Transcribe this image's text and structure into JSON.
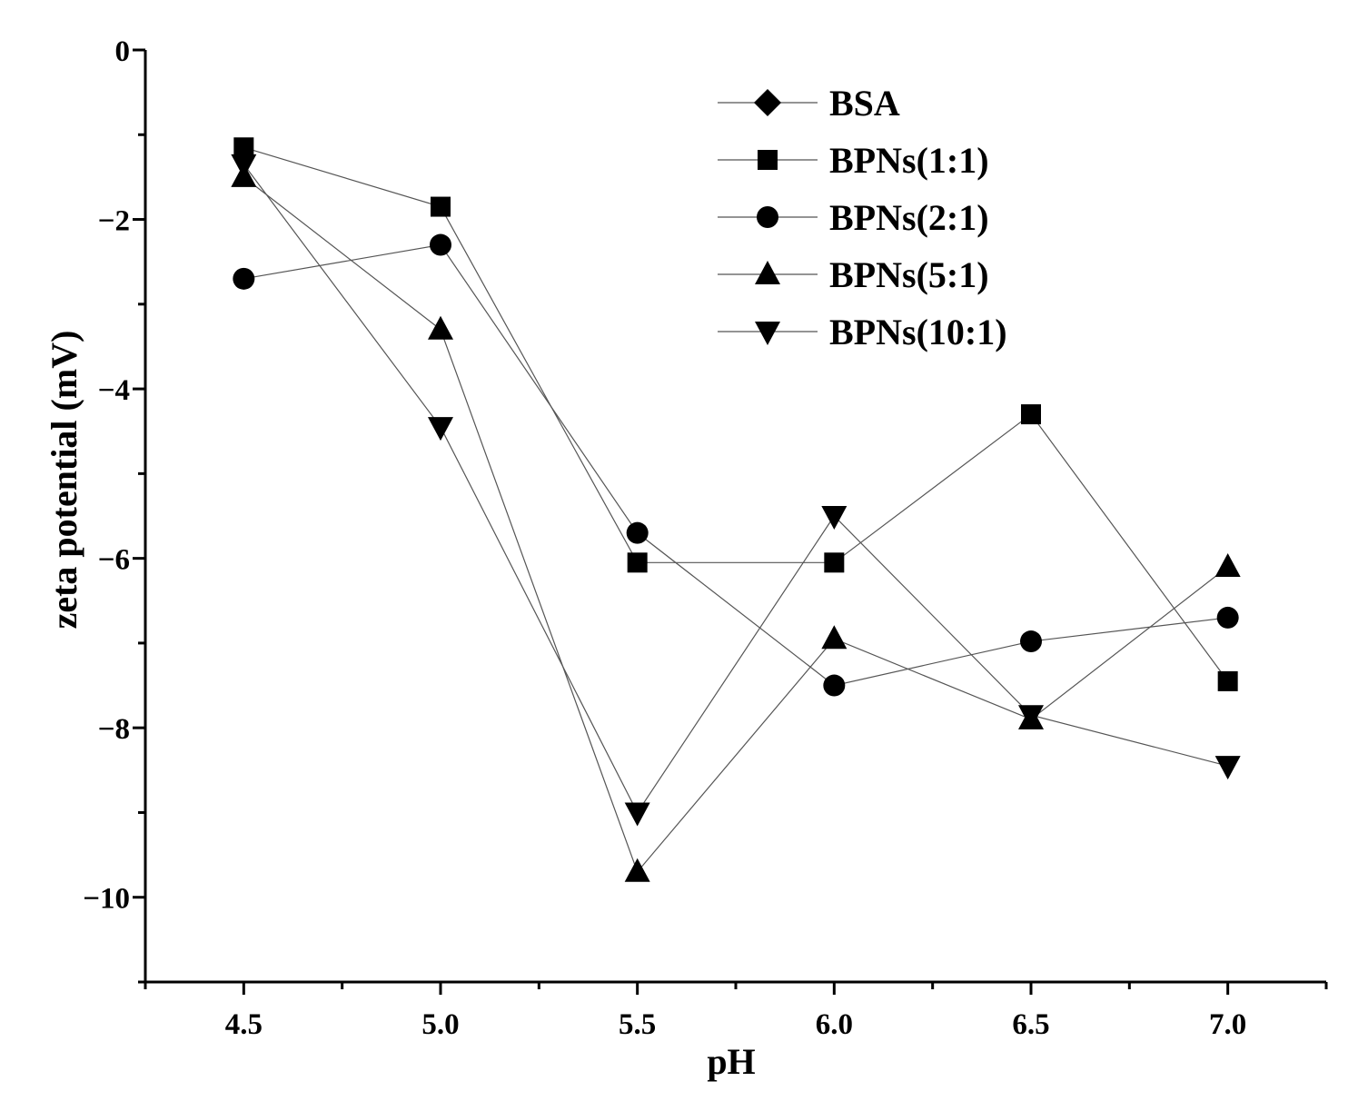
{
  "chart_data": {
    "type": "line",
    "xlabel": "pH",
    "ylabel": "zeta potential (mV)",
    "xlim": [
      4.25,
      7.25
    ],
    "ylim": [
      -11,
      0
    ],
    "x": [
      4.5,
      5.0,
      5.5,
      6.0,
      6.5,
      7.0
    ],
    "x_tick_labels": [
      "4.5",
      "5.0",
      "5.5",
      "6.0",
      "6.5",
      "7.0"
    ],
    "y_ticks": [
      0,
      -2,
      -4,
      -6,
      -8,
      -10
    ],
    "y_tick_labels": [
      "0",
      "−2",
      "−4",
      "−6",
      "−8",
      "−10"
    ],
    "grid": false,
    "legend_position": "top-right",
    "series": [
      {
        "name": "BSA",
        "marker": "diamond",
        "values": [
          null,
          null,
          null,
          null,
          null,
          null
        ]
      },
      {
        "name": "BPNs(1:1)",
        "marker": "square",
        "values": [
          -1.15,
          -1.85,
          -6.05,
          -6.05,
          -4.3,
          -7.45
        ]
      },
      {
        "name": "BPNs(2:1)",
        "marker": "circle",
        "values": [
          -2.7,
          -2.3,
          -5.7,
          -7.5,
          -6.98,
          -6.7
        ]
      },
      {
        "name": "BPNs(5:1)",
        "marker": "triangle-up",
        "values": [
          -1.5,
          -3.3,
          -9.7,
          -6.95,
          -7.9,
          -6.1
        ]
      },
      {
        "name": "BPNs(10:1)",
        "marker": "triangle-down",
        "values": [
          -1.35,
          -4.45,
          -9.0,
          -5.5,
          -7.85,
          -8.45
        ]
      }
    ],
    "colors": {
      "line": "#555555",
      "marker": "#000000",
      "axis": "#000000"
    }
  }
}
